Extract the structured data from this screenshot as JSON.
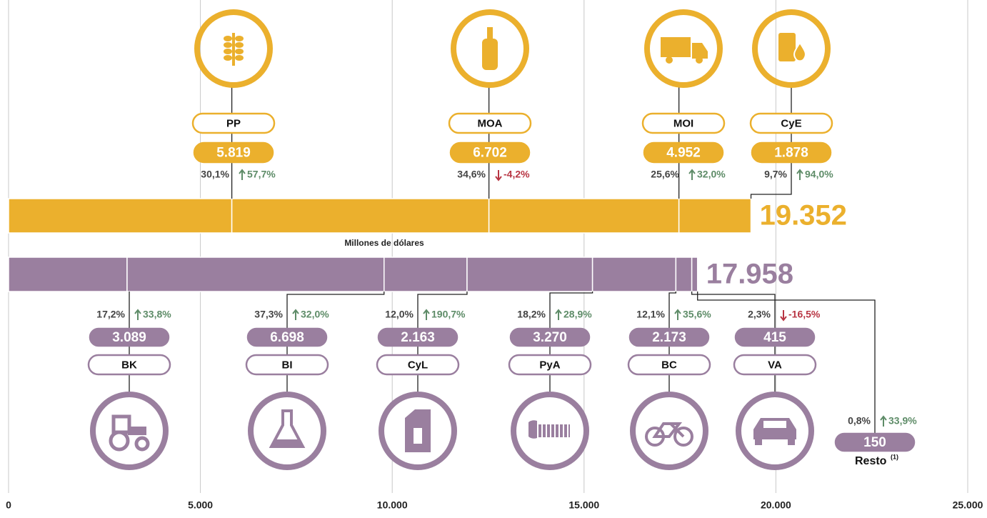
{
  "chart_data": {
    "type": "stacked_hbar",
    "axis_label": "Millones de dólares",
    "xlim": [
      0,
      25000
    ],
    "xticks": [
      0,
      {
        "value": 5000,
        "label": "5.000"
      },
      {
        "value": 10000,
        "label": "10.000"
      },
      {
        "value": 15000,
        "label": "15.000"
      },
      {
        "value": 20000,
        "label": "20.000"
      },
      {
        "value": 25000,
        "label": "25.000"
      }
    ],
    "grid": true,
    "bars": [
      {
        "color": "#ebb02d",
        "total": 19352,
        "total_label": "19.352",
        "categories": [
          "PP",
          "MOA",
          "MOI",
          "CyE"
        ],
        "values": [
          5819,
          6702,
          4952,
          1878
        ],
        "value_labels": [
          "5.819",
          "6.702",
          "4.952",
          "1.878"
        ],
        "shares": [
          30.1,
          34.6,
          25.6,
          9.7
        ],
        "share_labels": [
          "30,1%",
          "34,6%",
          "25,6%",
          "9,7%"
        ],
        "changes": [
          57.7,
          -4.2,
          32.0,
          94.0
        ],
        "change_labels": [
          "57,7%",
          "-4,2%",
          "32,0%",
          "94,0%"
        ]
      },
      {
        "color": "#9a7f9f",
        "total": 17958,
        "total_label": "17.958",
        "categories": [
          "BK",
          "BI",
          "CyL",
          "PyA",
          "BC",
          "VA",
          "Resto"
        ],
        "values": [
          3089,
          6698,
          2163,
          3270,
          2173,
          415,
          150
        ],
        "value_labels": [
          "3.089",
          "6.698",
          "2.163",
          "3.270",
          "2.173",
          "415",
          "150"
        ],
        "shares": [
          17.2,
          37.3,
          12.0,
          18.2,
          12.1,
          2.3,
          0.8
        ],
        "share_labels": [
          "17,2%",
          "37,3%",
          "12,0%",
          "18,2%",
          "12,1%",
          "2,3%",
          "0,8%"
        ],
        "changes": [
          33.8,
          32.0,
          190.7,
          28.9,
          35.6,
          -16.5,
          33.9
        ],
        "change_labels": [
          "33,8%",
          "32,0%",
          "190,7%",
          "28,9%",
          "35,6%",
          "-16,5%",
          "33,9%"
        ],
        "note": "(1)"
      }
    ]
  }
}
